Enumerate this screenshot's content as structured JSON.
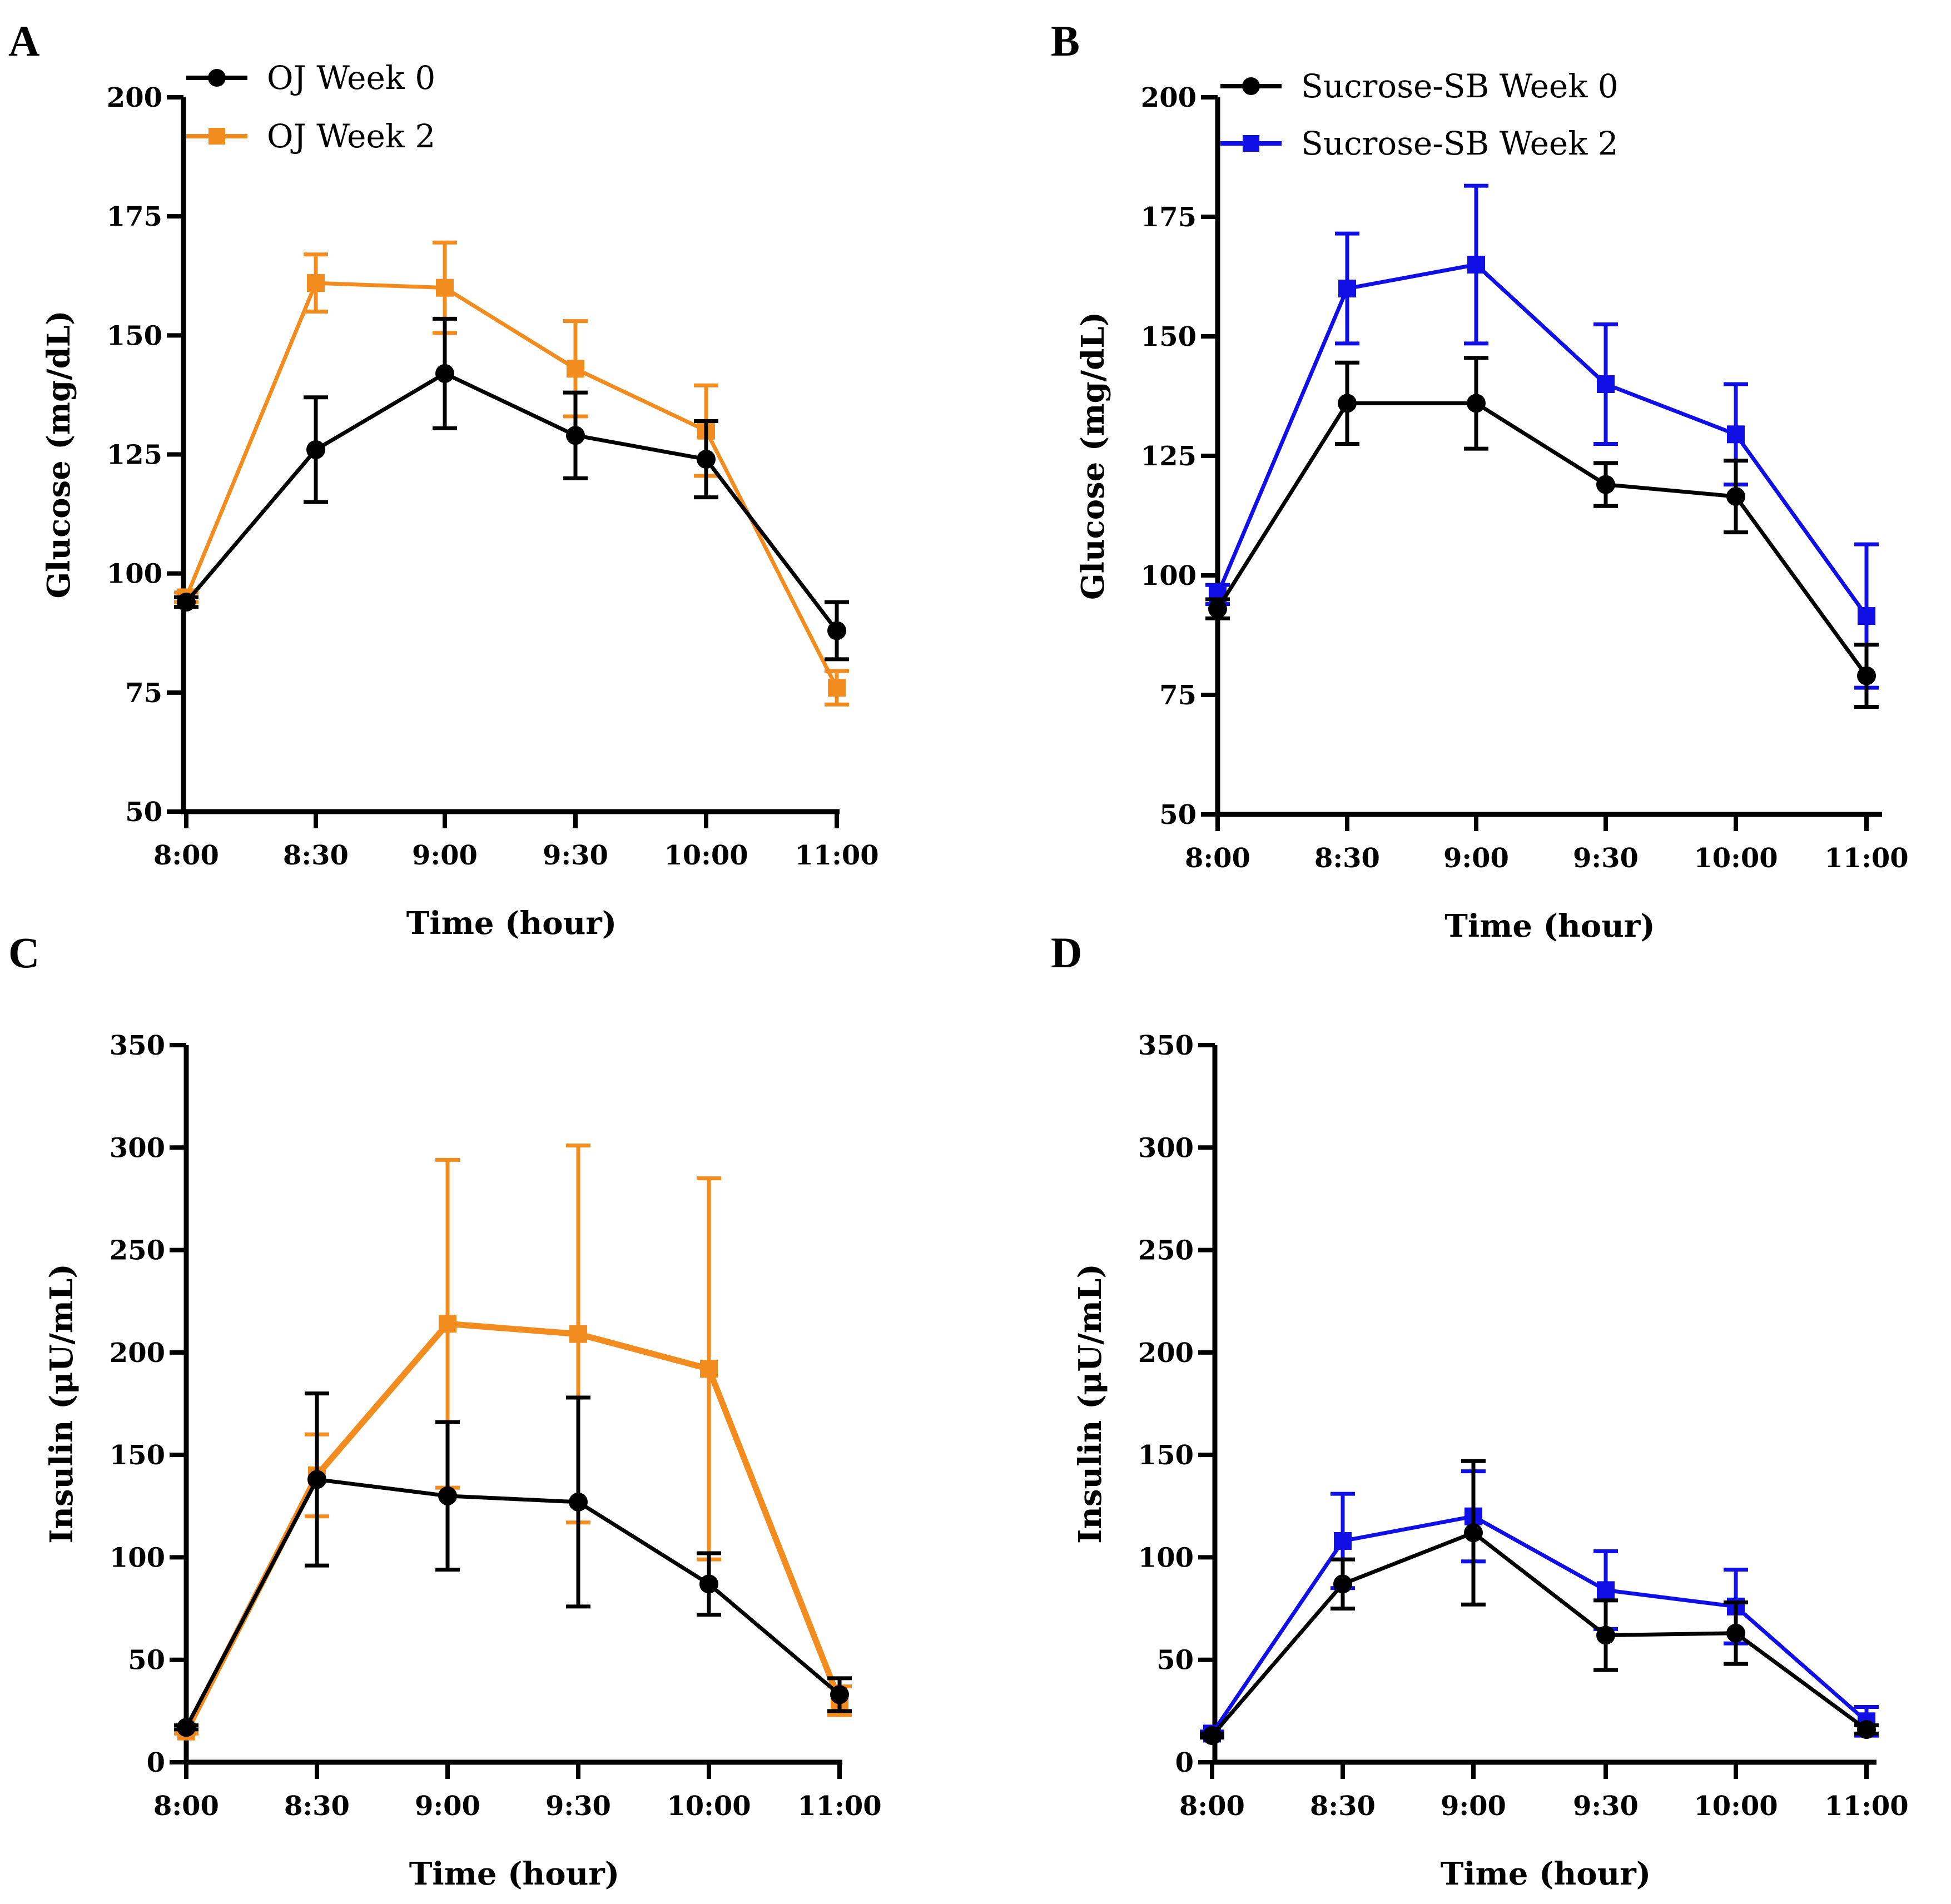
{
  "figure": {
    "panel_letters": [
      "A",
      "B",
      "C",
      "D"
    ]
  },
  "colors": {
    "week0": "#000000",
    "oj_week2": "#F28C1E",
    "sb_week2": "#1010E6"
  },
  "chart_data": [
    {
      "panel": "A",
      "type": "line",
      "xlabel": "Time (hour)",
      "ylabel": "Glucose (mg/dL)",
      "categories": [
        "8:00",
        "8:30",
        "9:00",
        "9:30",
        "10:00",
        "11:00"
      ],
      "ylim": [
        50,
        200
      ],
      "yticks": [
        50,
        75,
        100,
        125,
        150,
        175,
        200
      ],
      "legend": "top-left",
      "series": [
        {
          "name": "OJ Week 0",
          "marker": "circle",
          "color": "#000000",
          "values": [
            94,
            126,
            142,
            129,
            124,
            88
          ],
          "errors": [
            1,
            11,
            11.5,
            9,
            8,
            6
          ]
        },
        {
          "name": "OJ Week 2",
          "marker": "square",
          "color": "#F28C1E",
          "values": [
            95,
            161,
            160,
            143,
            130,
            76
          ],
          "errors": [
            1,
            6,
            9.5,
            10,
            9.5,
            3.5
          ]
        }
      ]
    },
    {
      "panel": "B",
      "type": "line",
      "xlabel": "Time (hour)",
      "ylabel": "Glucose (mg/dL)",
      "categories": [
        "8:00",
        "8:30",
        "9:00",
        "9:30",
        "10:00",
        "11:00"
      ],
      "ylim": [
        50,
        200
      ],
      "yticks": [
        50,
        75,
        100,
        125,
        150,
        175,
        200
      ],
      "legend": "top-left",
      "series": [
        {
          "name": "Sucrose-SB Week 0",
          "marker": "circle",
          "color": "#000000",
          "values": [
            93,
            136,
            136,
            119,
            116.5,
            79
          ],
          "errors": [
            2,
            8.5,
            9.5,
            4.5,
            7.5,
            6.5
          ]
        },
        {
          "name": "Sucrose-SB Week 2",
          "marker": "square",
          "color": "#1010E6",
          "values": [
            96,
            160,
            165,
            140,
            129.5,
            91.5
          ],
          "errors": [
            2,
            11.5,
            16.5,
            12.5,
            10.5,
            15
          ]
        }
      ]
    },
    {
      "panel": "C",
      "type": "line",
      "xlabel": "Time (hour)",
      "ylabel": "Insulin (μU/mL)",
      "categories": [
        "8:00",
        "8:30",
        "9:00",
        "9:30",
        "10:00",
        "11:00"
      ],
      "ylim": [
        0,
        350
      ],
      "yticks": [
        0,
        50,
        100,
        150,
        200,
        250,
        300,
        350
      ],
      "legend": "none",
      "series": [
        {
          "name": "OJ Week 0",
          "marker": "circle",
          "color": "#000000",
          "values": [
            17,
            138,
            130,
            127,
            87,
            33
          ],
          "errors": [
            1,
            42,
            36,
            51,
            15,
            8
          ]
        },
        {
          "name": "OJ Week 2",
          "marker": "square",
          "color": "#F28C1E",
          "values": [
            15,
            140,
            214,
            209,
            192,
            30
          ],
          "errors": [
            1,
            20,
            80,
            92,
            93,
            7
          ]
        }
      ]
    },
    {
      "panel": "D",
      "type": "line",
      "xlabel": "Time (hour)",
      "ylabel": "Insulin (μU/mL)",
      "categories": [
        "8:00",
        "8:30",
        "9:00",
        "9:30",
        "10:00",
        "11:00"
      ],
      "ylim": [
        0,
        350
      ],
      "yticks": [
        0,
        50,
        100,
        150,
        200,
        250,
        300,
        350
      ],
      "legend": "none",
      "series": [
        {
          "name": "Sucrose-SB Week 0",
          "marker": "circle",
          "color": "#000000",
          "values": [
            13,
            87,
            112,
            62,
            63,
            16
          ],
          "errors": [
            1,
            12,
            35,
            17,
            15,
            2
          ]
        },
        {
          "name": "Sucrose-SB Week 2",
          "marker": "square",
          "color": "#1010E6",
          "values": [
            14,
            108,
            120,
            84,
            76,
            20
          ],
          "errors": [
            1,
            23,
            22,
            19,
            18,
            7
          ]
        }
      ]
    }
  ]
}
